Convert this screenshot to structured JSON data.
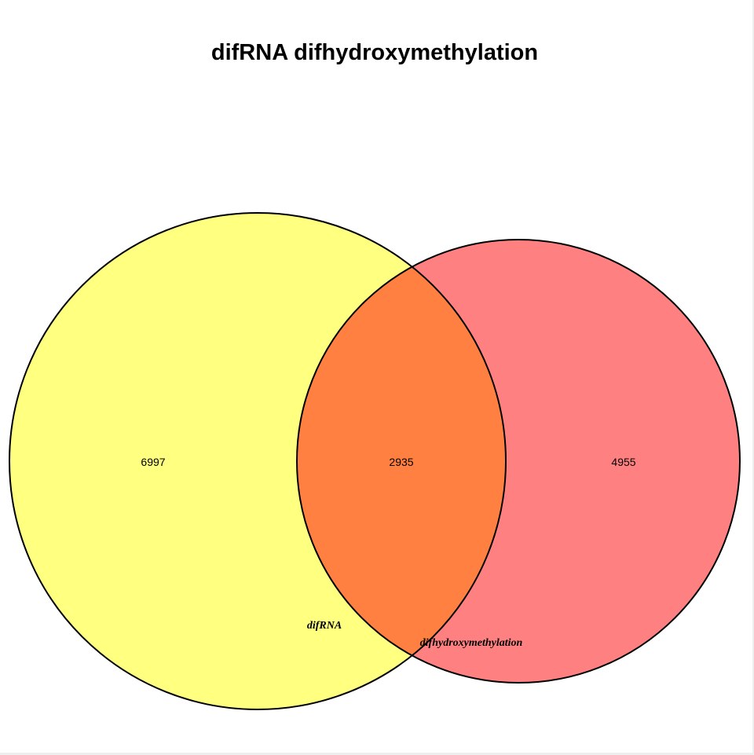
{
  "title": "difRNA difhydroxymethylation",
  "sets": [
    {
      "name": "difRNA",
      "color": "#ffff80",
      "only_count": "6997"
    },
    {
      "name": "difhydroxymethylation",
      "color": "#ff8080",
      "only_count": "4955"
    }
  ],
  "intersection": {
    "count": "2935",
    "color": "#ff8040"
  },
  "outline_color": "#000000",
  "background": "#ffffff"
}
